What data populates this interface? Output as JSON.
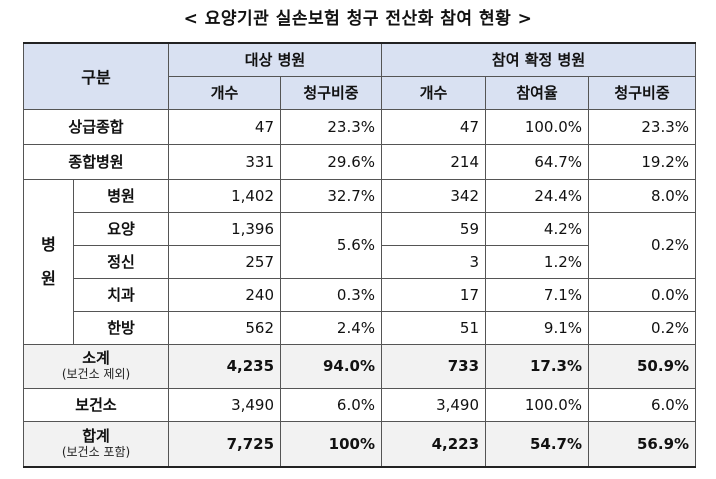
{
  "title": "< 요양기관 실손보험 청구 전산화 참여 현황 >",
  "header": {
    "division": "구분",
    "target_group": "대상 병원",
    "confirmed_group": "참여 확정 병원",
    "count": "개수",
    "claim_share": "청구비중",
    "participation_rate": "참여율"
  },
  "rows": {
    "tertiary": {
      "label": "상급종합",
      "t_count": "47",
      "t_share": "23.3%",
      "c_count": "47",
      "c_rate": "100.0%",
      "c_share": "23.3%"
    },
    "general": {
      "label": "종합병원",
      "t_count": "331",
      "t_share": "29.6%",
      "c_count": "214",
      "c_rate": "64.7%",
      "c_share": "19.2%"
    },
    "hospital_group": "병\n원",
    "hospital": {
      "label": "병원",
      "t_count": "1,402",
      "t_share": "32.7%",
      "c_count": "342",
      "c_rate": "24.4%",
      "c_share": "8.0%"
    },
    "nursing": {
      "label": "요양",
      "t_count": "1,396",
      "t_share": "5.6%",
      "c_count": "59",
      "c_rate": "4.2%",
      "c_share": "0.2%"
    },
    "mental": {
      "label": "정신",
      "t_count": "257",
      "c_count": "3",
      "c_rate": "1.2%"
    },
    "dental": {
      "label": "치과",
      "t_count": "240",
      "t_share": "0.3%",
      "c_count": "17",
      "c_rate": "7.1%",
      "c_share": "0.0%"
    },
    "oriental": {
      "label": "한방",
      "t_count": "562",
      "t_share": "2.4%",
      "c_count": "51",
      "c_rate": "9.1%",
      "c_share": "0.2%"
    },
    "subtotal": {
      "label": "소계",
      "note": "(보건소 제외)",
      "t_count": "4,235",
      "t_share": "94.0%",
      "c_count": "733",
      "c_rate": "17.3%",
      "c_share": "50.9%"
    },
    "health_center": {
      "label": "보건소",
      "t_count": "3,490",
      "t_share": "6.0%",
      "c_count": "3,490",
      "c_rate": "100.0%",
      "c_share": "6.0%"
    },
    "total": {
      "label": "합계",
      "note": "(보건소 포함)",
      "t_count": "7,725",
      "t_share": "100%",
      "c_count": "4,223",
      "c_rate": "54.7%",
      "c_share": "56.9%"
    }
  }
}
